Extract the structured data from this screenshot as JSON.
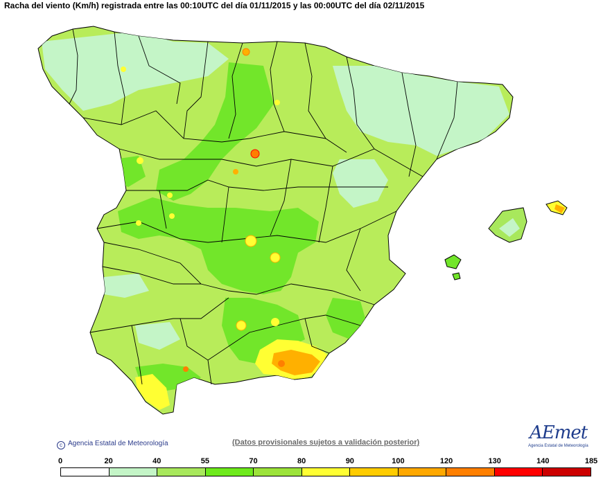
{
  "title": "Racha del viento (Km/h) registrada entre las 00:10UTC del día 01/11/2015 y las 00:00UTC del día 02/11/2015",
  "copyright": "Agencia Estatal de Meteorología",
  "disclaimer": "(Datos provisionales sujetos a validación posterior)",
  "logo": {
    "word": "AEmet",
    "subtitle": "Agencia Estatal de Meteorología"
  },
  "legend": {
    "ticks": [
      "0",
      "20",
      "40",
      "55",
      "70",
      "80",
      "90",
      "100",
      "120",
      "130",
      "140",
      "185"
    ],
    "colors": [
      "#ffffff",
      "#c4f5c7",
      "#a8e85c",
      "#6eea1c",
      "#9ce33a",
      "#ffff33",
      "#ffcc00",
      "#ffa800",
      "#ff7f00",
      "#ff0000",
      "#cc0000",
      "#a01010"
    ]
  },
  "palette": {
    "light_green": "#c4f5c7",
    "lime": "#b8ec5a",
    "green": "#72e62a",
    "yellow": "#ffff33",
    "orange": "#ffb000"
  }
}
